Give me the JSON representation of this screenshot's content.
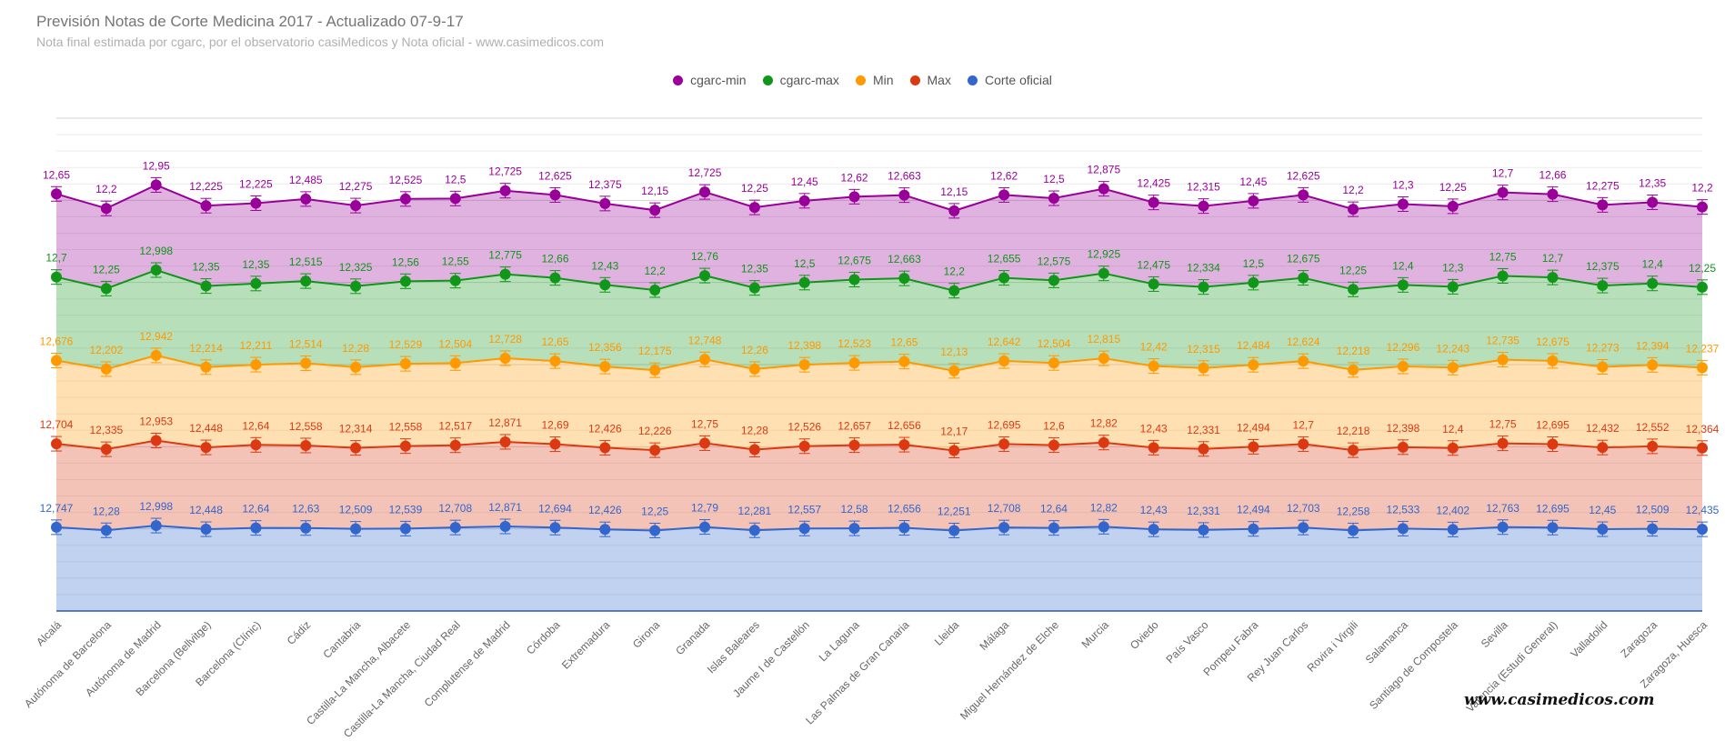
{
  "title": "Previsión Notas de Corte Medicina 2017 - Actualizado 07-9-17",
  "subtitle": "Nota final estimada por cgarc, por el observatorio casiMedicos y Nota oficial  - www.casimedicos.com",
  "watermark": "www.casimedicos.com",
  "legend": [
    {
      "name": "cgarc-min",
      "color": "#990099"
    },
    {
      "name": "cgarc-max",
      "color": "#109618"
    },
    {
      "name": "Min",
      "color": "#ff9900"
    },
    {
      "name": "Max",
      "color": "#dc3912"
    },
    {
      "name": "Corte oficial",
      "color": "#3366cc"
    }
  ],
  "chart_data": {
    "type": "area",
    "stacked": true,
    "grid": true,
    "legend_position": "top",
    "error_bars": true,
    "categories": [
      "Alcalá",
      "Autónoma de Barcelona",
      "Autónoma de Madrid",
      "Barcelona (Bellvitge)",
      "Barcelona (Clínic)",
      "Cádiz",
      "Cantabria",
      "Castilla-La Mancha, Albacete",
      "Castilla-La Mancha, Ciudad Real",
      "Complutense de Madrid",
      "Córdoba",
      "Extremadura",
      "Girona",
      "Granada",
      "Islas Baleares",
      "Jaume I de Castellón",
      "La Laguna",
      "Las Palmas de Gran Canaria",
      "Lleida",
      "Málaga",
      "Miguel Hernández de Elche",
      "Murcia",
      "Oviedo",
      "País Vasco",
      "Pompeu Fabra",
      "Rey Juan Carlos",
      "Rovira i Virgili",
      "Salamanca",
      "Santiago de Compostela",
      "Sevilla",
      "Valencia (Estudi General)",
      "Valladolid",
      "Zaragoza",
      "Zaragoza, Huesca"
    ],
    "series": [
      {
        "name": "cgarc-min",
        "color": "#990099",
        "values": [
          "12,65",
          "12,2",
          "12,95",
          "12,225",
          "12,225",
          "12,485",
          "12,275",
          "12,525",
          "12,5",
          "12,725",
          "12,625",
          "12,375",
          "12,15",
          "12,725",
          "12,25",
          "12,45",
          "12,62",
          "12,663",
          "12,15",
          "12,62",
          "12,5",
          "12,875",
          "12,425",
          "12,315",
          "12,45",
          "12,625",
          "12,2",
          "12,3",
          "12,25",
          "12,7",
          "12,66",
          "12,275",
          "12,35",
          "12,2"
        ]
      },
      {
        "name": "cgarc-max",
        "color": "#109618",
        "values": [
          "12,7",
          "12,25",
          "12,998",
          "12,35",
          "12,35",
          "12,515",
          "12,325",
          "12,56",
          "12,55",
          "12,775",
          "12,66",
          "12,43",
          "12,2",
          "12,76",
          "12,35",
          "12,5",
          "12,675",
          "12,663",
          "12,2",
          "12,655",
          "12,575",
          "12,925",
          "12,475",
          "12,334",
          "12,5",
          "12,675",
          "12,25",
          "12,4",
          "12,3",
          "12,75",
          "12,7",
          "12,375",
          "12,4",
          "12,25"
        ]
      },
      {
        "name": "Min",
        "color": "#ff9900",
        "values": [
          "12,676",
          "12,202",
          "12,942",
          "12,214",
          "12,211",
          "12,514",
          "12,28",
          "12,529",
          "12,504",
          "12,728",
          "12,65",
          "12,356",
          "12,175",
          "12,748",
          "12,26",
          "12,398",
          "12,523",
          "12,65",
          "12,13",
          "12,642",
          "12,504",
          "12,815",
          "12,42",
          "12,315",
          "12,484",
          "12,624",
          "12,218",
          "12,296",
          "12,243",
          "12,735",
          "12,675",
          "12,273",
          "12,394",
          "12,237"
        ]
      },
      {
        "name": "Max",
        "color": "#dc3912",
        "values": [
          "12,704",
          "12,335",
          "12,953",
          "12,448",
          "12,64",
          "12,558",
          "12,314",
          "12,558",
          "12,517",
          "12,871",
          "12,69",
          "12,426",
          "12,226",
          "12,75",
          "12,28",
          "12,526",
          "12,657",
          "12,656",
          "12,17",
          "12,695",
          "12,6",
          "12,82",
          "12,43",
          "12,331",
          "12,494",
          "12,7",
          "12,218",
          "12,398",
          "12,4",
          "12,75",
          "12,695",
          "12,432",
          "12,552",
          "12,364"
        ]
      },
      {
        "name": "Corte oficial",
        "color": "#3366cc",
        "values": [
          "12,747",
          "12,28",
          "12,998",
          "12,448",
          "12,64",
          "12,63",
          "12,509",
          "12,539",
          "12,708",
          "12,871",
          "12,694",
          "12,426",
          "12,25",
          "12,79",
          "12,281",
          "12,557",
          "12,58",
          "12,656",
          "12,251",
          "12,708",
          "12,64",
          "12,82",
          "12,43",
          "12,331",
          "12,494",
          "12,703",
          "12,258",
          "12,533",
          "12,402",
          "12,763",
          "12,695",
          "12,45",
          "12,509",
          "12,435"
        ]
      }
    ]
  }
}
